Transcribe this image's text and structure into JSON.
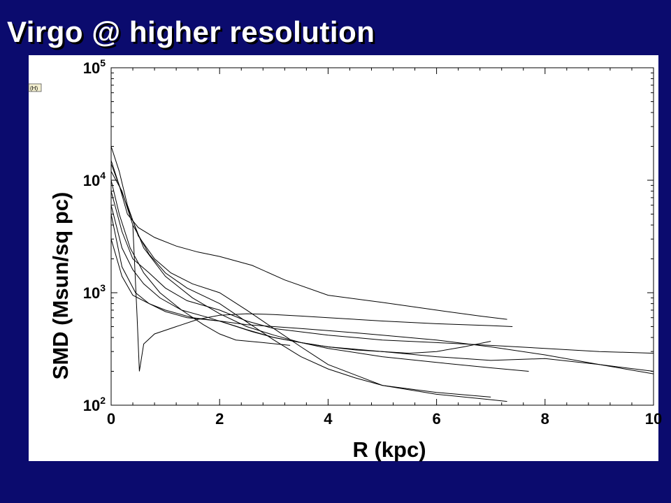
{
  "slide": {
    "title": "Virgo @ higher resolution",
    "background_color": "#0b0b6e",
    "title_color": "#ffffff"
  },
  "corner_tag": "(H)",
  "chart_data": {
    "type": "line",
    "xlabel": "R (kpc)",
    "ylabel": "SMD (Msun/sq pc)",
    "xlim": [
      0,
      10
    ],
    "ylim": [
      100,
      100000
    ],
    "y_scale": "log",
    "x_ticks": [
      "0",
      "2",
      "4",
      "6",
      "8",
      "10"
    ],
    "y_tick_bases": [
      "10",
      "10",
      "10",
      "10"
    ],
    "y_tick_exponents": [
      "2",
      "3",
      "4",
      "5"
    ],
    "line_color": "#000000",
    "grid": false,
    "series": [
      {
        "x": [
          0,
          0.15,
          0.3,
          0.5,
          0.8,
          1.2,
          1.6,
          2.0,
          2.6,
          3.2,
          4.0,
          5.0,
          6.0,
          6.8,
          7.3
        ],
        "y": [
          15000,
          9000,
          5000,
          3800,
          3100,
          2600,
          2300,
          2100,
          1750,
          1300,
          950,
          820,
          700,
          620,
          580
        ]
      },
      {
        "x": [
          0,
          0.2,
          0.4,
          0.7,
          1.0,
          1.4,
          2.0,
          2.5,
          3.0,
          4.0,
          5.0,
          6.0,
          7.0,
          8.0,
          9.0,
          10.0
        ],
        "y": [
          8000,
          3500,
          2000,
          1500,
          1100,
          850,
          700,
          560,
          480,
          420,
          380,
          360,
          340,
          320,
          300,
          290
        ]
      },
      {
        "x": [
          0,
          0.2,
          0.45,
          0.7,
          1.0,
          1.5,
          2.0,
          2.5,
          3.0,
          3.5,
          4.0,
          4.5,
          5.0,
          6.0,
          7.0,
          8.0,
          9.0,
          10.0
        ],
        "y": [
          5000,
          1700,
          1000,
          800,
          700,
          600,
          560,
          520,
          500,
          480,
          460,
          440,
          420,
          380,
          330,
          280,
          230,
          190
        ]
      },
      {
        "x": [
          0,
          0.2,
          0.4,
          0.7,
          1.0,
          1.4,
          2.0,
          2.5,
          3.0,
          3.5,
          4.0,
          4.5,
          5.0,
          5.5,
          6.0,
          6.5,
          7.0
        ],
        "y": [
          3000,
          1400,
          950,
          800,
          680,
          600,
          560,
          470,
          400,
          360,
          330,
          310,
          300,
          290,
          300,
          330,
          370
        ]
      },
      {
        "x": [
          0.4,
          0.48,
          0.52,
          0.6,
          0.8,
          1.2,
          1.6,
          2.0,
          2.5,
          3.0,
          3.5,
          4.0,
          5.0,
          6.0,
          7.0,
          7.4
        ],
        "y": [
          4000,
          600,
          200,
          350,
          430,
          500,
          580,
          630,
          650,
          640,
          620,
          600,
          560,
          530,
          510,
          500
        ]
      },
      {
        "x": [
          0,
          0.15,
          0.3,
          0.5,
          0.8,
          1.1,
          1.5,
          2.0,
          2.5,
          3.0,
          3.5,
          4.0,
          5.0,
          6.0,
          7.0,
          7.3
        ],
        "y": [
          20000,
          12000,
          6000,
          3200,
          2000,
          1500,
          1200,
          1000,
          700,
          480,
          330,
          230,
          150,
          125,
          112,
          108
        ]
      },
      {
        "x": [
          0,
          0.2,
          0.4,
          0.7,
          1.0,
          1.4,
          2.0,
          2.5,
          3.0,
          3.5,
          4.0,
          4.5,
          5.0,
          6.0,
          7.0
        ],
        "y": [
          12000,
          8000,
          4000,
          2200,
          1500,
          1100,
          800,
          550,
          380,
          270,
          210,
          175,
          150,
          130,
          118
        ]
      },
      {
        "x": [
          0,
          0.15,
          0.35,
          0.6,
          1.0,
          1.5,
          2.0,
          2.5,
          3.0,
          3.5,
          4.0,
          5.0,
          6.0,
          7.0,
          7.7
        ],
        "y": [
          14000,
          9000,
          5000,
          2500,
          1400,
          900,
          650,
          500,
          420,
          360,
          320,
          270,
          240,
          215,
          200
        ]
      },
      {
        "x": [
          0,
          0.2,
          0.4,
          0.6,
          0.9,
          1.3,
          1.8,
          2.2,
          2.6,
          3.0,
          3.5,
          4.0,
          5.0,
          6.0,
          7.0,
          8.0,
          9.0,
          10.0
        ],
        "y": [
          6000,
          2500,
          1600,
          1200,
          900,
          700,
          600,
          520,
          450,
          400,
          360,
          330,
          300,
          270,
          250,
          260,
          230,
          200
        ]
      },
      {
        "x": [
          0,
          0.15,
          0.35,
          0.6,
          0.9,
          1.3,
          1.7,
          2.0,
          2.3,
          2.8,
          3.3
        ],
        "y": [
          10000,
          5000,
          2500,
          1500,
          1000,
          700,
          520,
          430,
          380,
          360,
          340
        ]
      }
    ]
  }
}
